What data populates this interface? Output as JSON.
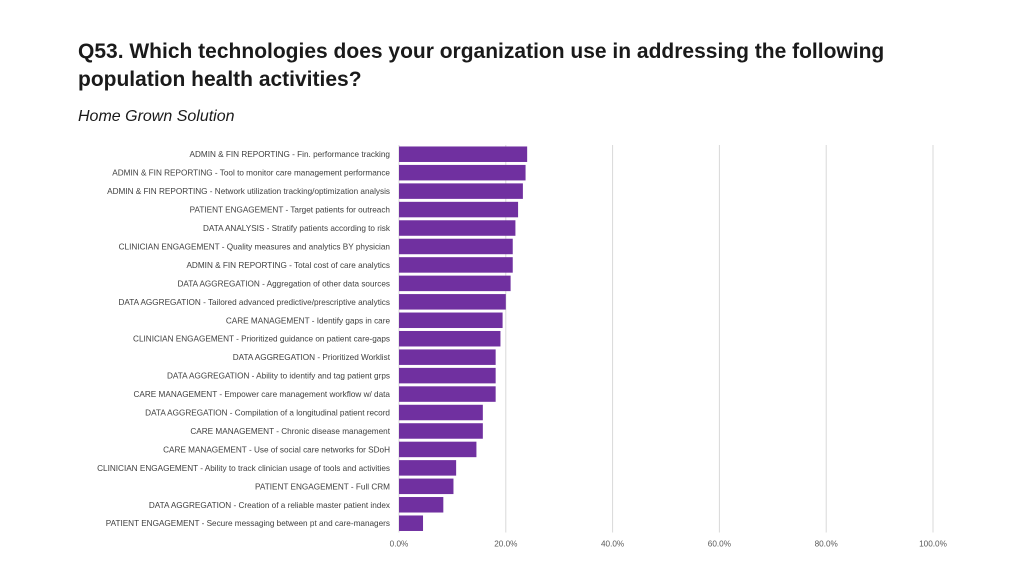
{
  "header": {
    "title": "Q53. Which technologies does your organization use in addressing the following population health activities?",
    "subtitle": "Home Grown Solution"
  },
  "chart_data": {
    "type": "bar",
    "orientation": "horizontal",
    "categories": [
      "ADMIN & FIN REPORTING - Fin. performance tracking",
      "ADMIN & FIN REPORTING - Tool to monitor care management performance",
      "ADMIN & FIN REPORTING - Network utilization tracking/optimization analysis",
      "PATIENT ENGAGEMENT - Target patients for outreach",
      "DATA ANALYSIS - Stratify patients according to risk",
      "CLINICIAN ENGAGEMENT - Quality measures and analytics BY physician",
      "ADMIN & FIN REPORTING - Total cost of care analytics",
      "DATA AGGREGATION - Aggregation of other data sources",
      "DATA AGGREGATION - Tailored advanced predictive/prescriptive analytics",
      "CARE MANAGEMENT - Identify gaps in care",
      "CLINICIAN ENGAGEMENT - Prioritized guidance on patient care-gaps",
      "DATA AGGREGATION - Prioritized Worklist",
      "DATA AGGREGATION - Ability to identify and tag patient grps",
      "CARE MANAGEMENT - Empower care management workflow w/ data",
      "DATA AGGREGATION - Compilation of a longitudinal patient record",
      "CARE MANAGEMENT - Chronic disease management",
      "CARE MANAGEMENT - Use of social care networks for SDoH",
      "CLINICIAN ENGAGEMENT - Ability to track clinician usage of tools and activities",
      "PATIENT ENGAGEMENT - Full CRM",
      "DATA AGGREGATION - Creation of a reliable master patient index",
      "PATIENT ENGAGEMENT - Secure messaging between pt and care-managers"
    ],
    "values": [
      24.0,
      23.7,
      23.2,
      22.3,
      21.8,
      21.3,
      21.3,
      20.9,
      20.0,
      19.4,
      19.0,
      18.1,
      18.1,
      18.1,
      15.7,
      15.7,
      14.5,
      10.7,
      10.2,
      8.3,
      4.5
    ],
    "xlim": [
      0,
      100
    ],
    "ticks": [
      "0.0%",
      "20.0%",
      "40.0%",
      "60.0%",
      "80.0%",
      "100.0%"
    ],
    "tick_values": [
      0,
      20,
      40,
      60,
      80,
      100
    ],
    "grid": true,
    "bar_color": "#7030a0",
    "grid_color": "#d9d9d9"
  }
}
